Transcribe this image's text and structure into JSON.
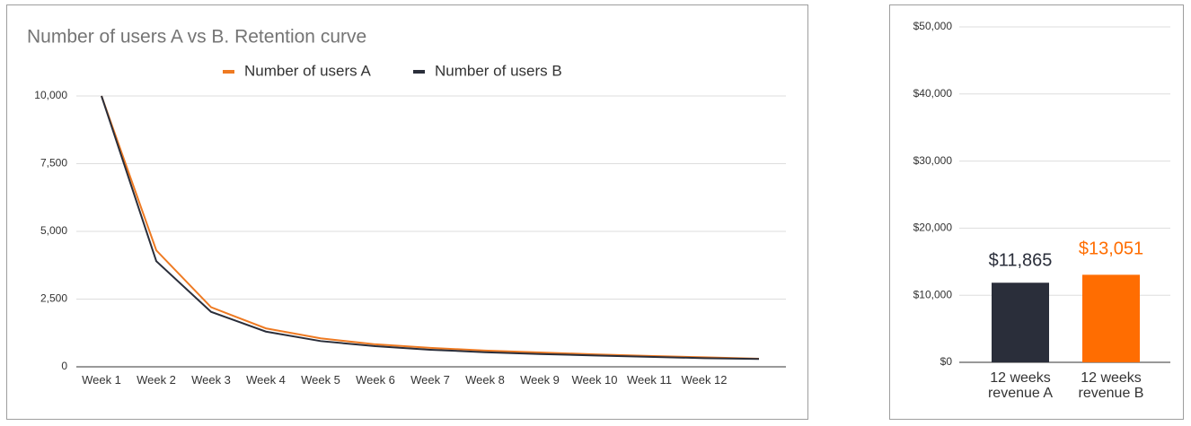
{
  "chart_data": [
    {
      "type": "line",
      "title": "Number of users A vs B. Retention curve",
      "categories": [
        "Week 1",
        "Week 2",
        "Week 3",
        "Week 4",
        "Week 5",
        "Week 6",
        "Week 7",
        "Week 8",
        "Week 9",
        "Week 10",
        "Week 11",
        "Week 12",
        null
      ],
      "series": [
        {
          "name": "Number of users A",
          "color": "#ee7a22",
          "values": [
            10000,
            4300,
            2200,
            1420,
            1050,
            830,
            700,
            600,
            530,
            460,
            400,
            350,
            300
          ]
        },
        {
          "name": "Number of users B",
          "color": "#2a2e3a",
          "values": [
            10000,
            3900,
            2030,
            1300,
            950,
            760,
            630,
            540,
            470,
            420,
            370,
            320,
            290
          ]
        }
      ],
      "ylim": [
        0,
        10000
      ],
      "yticks": [
        0,
        {
          "value": 2500,
          "label": "2,500"
        },
        {
          "value": 5000,
          "label": "5,000"
        },
        {
          "value": 7500,
          "label": "7,500"
        },
        {
          "value": 10000,
          "label": "10,000"
        }
      ],
      "grid": true,
      "legend": "top"
    },
    {
      "type": "bar",
      "categories": [
        "12 weeks revenue A",
        "12 weeks revenue B"
      ],
      "values": [
        11865,
        13051
      ],
      "value_labels": [
        "$11,865",
        "$13,051"
      ],
      "colors": [
        "#2a2e3a",
        "#ff6d01"
      ],
      "ylim": [
        0,
        50000
      ],
      "yticks": [
        {
          "value": 0,
          "label": "$0"
        },
        {
          "value": 10000,
          "label": "$10,000"
        },
        {
          "value": 20000,
          "label": "$20,000"
        },
        {
          "value": 30000,
          "label": "$30,000"
        },
        {
          "value": 40000,
          "label": "$40,000"
        },
        {
          "value": 50000,
          "label": "$50,000"
        }
      ],
      "grid": true
    }
  ]
}
